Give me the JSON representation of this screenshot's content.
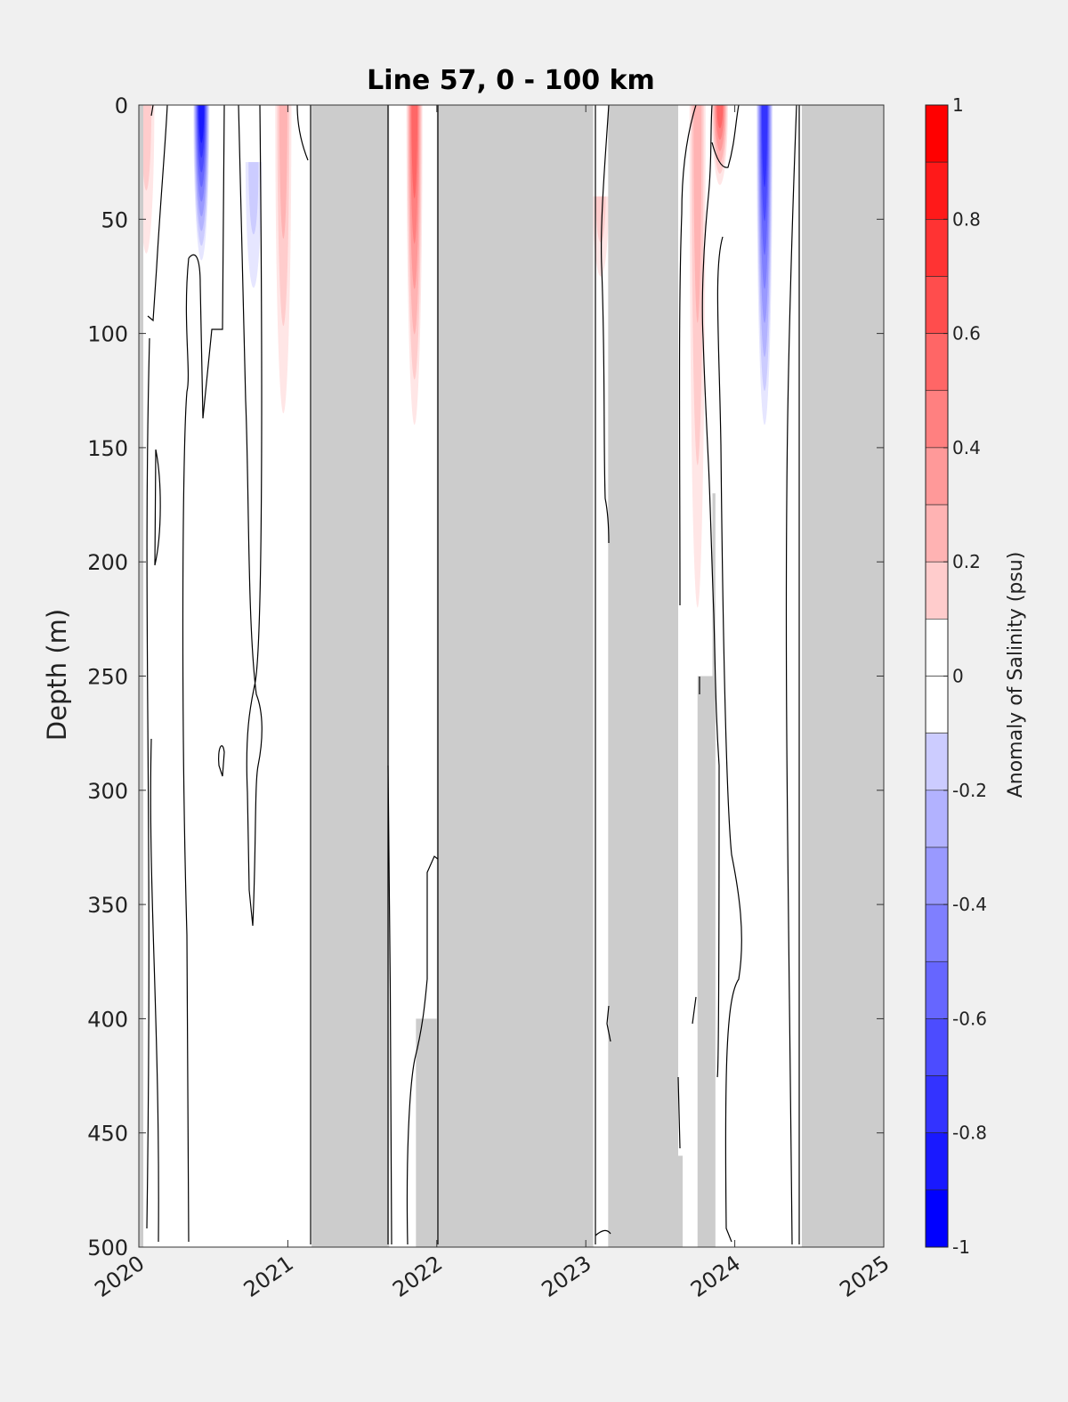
{
  "chart_data": {
    "type": "heatmap",
    "title": "Line 57, 0 - 100 km",
    "ylabel": "Depth (m)",
    "xlim": [
      2020,
      2025
    ],
    "ylim": [
      0,
      500
    ],
    "y_reversed": true,
    "x_ticks": [
      "2020",
      "2021",
      "2022",
      "2023",
      "2024",
      "2025"
    ],
    "y_ticks": [
      "0",
      "50",
      "100",
      "150",
      "200",
      "250",
      "300",
      "350",
      "400",
      "450",
      "500"
    ],
    "colorbar": {
      "label": "Anomaly of Salinity (psu)",
      "range": [
        -1,
        1
      ],
      "step": 0.1,
      "tick_labels": [
        "1",
        "0.8",
        "0.6",
        "0.4",
        "0.2",
        "0",
        "-0.2",
        "-0.4",
        "-0.6",
        "-0.8",
        "-1"
      ],
      "positive_color": "#ff0000",
      "negative_color": "#0000ff",
      "zero_color": "#ffffff"
    },
    "missing_color": "#cccccc",
    "data_gaps": [
      {
        "from": 2021.16,
        "to": 2021.68
      },
      {
        "from": 2022.0,
        "to": 2023.05
      },
      {
        "from": 2023.15,
        "to": 2023.62
      },
      {
        "from": 2024.45,
        "to": 2025.0
      }
    ],
    "partial_gaps": [
      {
        "from": 2020.0,
        "to": 2020.03,
        "depth_from": 0,
        "depth_to": 500
      },
      {
        "from": 2021.86,
        "to": 2022.0,
        "depth_from": 400,
        "depth_to": 500
      },
      {
        "from": 2023.62,
        "to": 2023.65,
        "depth_from": 460,
        "depth_to": 500
      },
      {
        "from": 2023.75,
        "to": 2023.85,
        "depth_from": 250,
        "depth_to": 500
      },
      {
        "from": 2023.85,
        "to": 2023.87,
        "depth_from": 170,
        "depth_to": 500
      }
    ],
    "anomalies": [
      {
        "time": 2020.05,
        "depth_top": 0,
        "depth_bottom": 65,
        "peak": 0.2
      },
      {
        "time": 2020.42,
        "depth_top": 0,
        "depth_bottom": 68,
        "peak": -0.85
      },
      {
        "time": 2020.77,
        "depth_top": 25,
        "depth_bottom": 80,
        "peak": -0.2
      },
      {
        "time": 2020.97,
        "depth_top": 0,
        "depth_bottom": 135,
        "peak": 0.35
      },
      {
        "time": 2021.85,
        "depth_top": 0,
        "depth_bottom": 140,
        "peak": 0.6
      },
      {
        "time": 2023.1,
        "depth_top": 40,
        "depth_bottom": 75,
        "peak": 0.2
      },
      {
        "time": 2023.75,
        "depth_top": 0,
        "depth_bottom": 220,
        "peak": 0.35
      },
      {
        "time": 2023.9,
        "depth_top": 0,
        "depth_bottom": 35,
        "peak": 0.6
      },
      {
        "time": 2024.2,
        "depth_top": 0,
        "depth_bottom": 140,
        "peak": -0.75
      }
    ]
  }
}
